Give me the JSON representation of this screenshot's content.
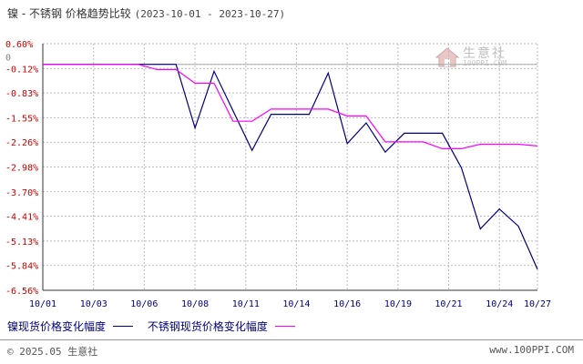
{
  "header": {
    "title": "镍 - 不锈钢 价格趋势比较",
    "date_range": "(2023-10-01 - 2023-10-27)"
  },
  "watermark": {
    "text_cn": "生意社",
    "text_en": "100PPI.COM",
    "icon": "house-logo-icon"
  },
  "footer": {
    "copyright": "© 2025.05 生意社",
    "site": "www.100PPI.COM"
  },
  "colors": {
    "nickel": "#000080",
    "stainless": "#ff00ff",
    "zero_label": "#808080",
    "axis": "#333333"
  },
  "chart_data": {
    "type": "line",
    "title": "镍 - 不锈钢 价格趋势比较",
    "subtitle": "(2023-10-01 - 2023-10-27)",
    "xlabel": "",
    "ylabel": "",
    "ylim": [
      -6.56,
      0.6
    ],
    "grid": true,
    "legend_position": "bottom-left",
    "y_ticks": [
      "0.60%",
      "0",
      "-0.12%",
      "-0.83%",
      "-1.55%",
      "-2.26%",
      "-2.98%",
      "-3.70%",
      "-4.41%",
      "-5.13%",
      "-5.84%",
      "-6.56%"
    ],
    "y_tick_values": [
      0.6,
      0,
      -0.12,
      -0.83,
      -1.55,
      -2.26,
      -2.98,
      -3.7,
      -4.41,
      -5.13,
      -5.84,
      -6.56
    ],
    "x_ticks": [
      "10/01",
      "10/03",
      "10/06",
      "10/08",
      "10/11",
      "10/14",
      "10/16",
      "10/19",
      "10/21",
      "10/24",
      "10/27"
    ],
    "x_tick_days": [
      1,
      3.67,
      6.33,
      9,
      11.67,
      14.33,
      17,
      19.67,
      22.33,
      25,
      27
    ],
    "series": [
      {
        "name": "镍现货价格变化幅度",
        "color": "#000080",
        "x": [
          1,
          6,
          8,
          9,
          10,
          12,
          13,
          15,
          16,
          17,
          18,
          19,
          20,
          21,
          22,
          23,
          24,
          25,
          26,
          27
        ],
        "values": [
          0,
          0,
          0,
          -1.85,
          -0.2,
          -2.5,
          -1.45,
          -1.45,
          -0.25,
          -2.3,
          -1.7,
          -2.55,
          -2.0,
          -2.0,
          -2.0,
          -3.0,
          -4.78,
          -4.2,
          -4.7,
          -5.95
        ]
      },
      {
        "name": "不锈钢现货价格变化幅度",
        "color": "#ff00ff",
        "x": [
          1,
          6,
          7,
          8,
          9,
          10,
          11,
          12,
          13,
          15,
          16,
          17,
          18,
          19,
          20,
          21,
          22,
          23,
          24,
          25,
          26,
          27
        ],
        "values": [
          0,
          0,
          -0.15,
          -0.15,
          -0.55,
          -0.55,
          -1.65,
          -1.65,
          -1.3,
          -1.3,
          -1.3,
          -1.5,
          -1.5,
          -2.25,
          -2.25,
          -2.25,
          -2.45,
          -2.45,
          -2.32,
          -2.32,
          -2.32,
          -2.37
        ]
      }
    ]
  }
}
